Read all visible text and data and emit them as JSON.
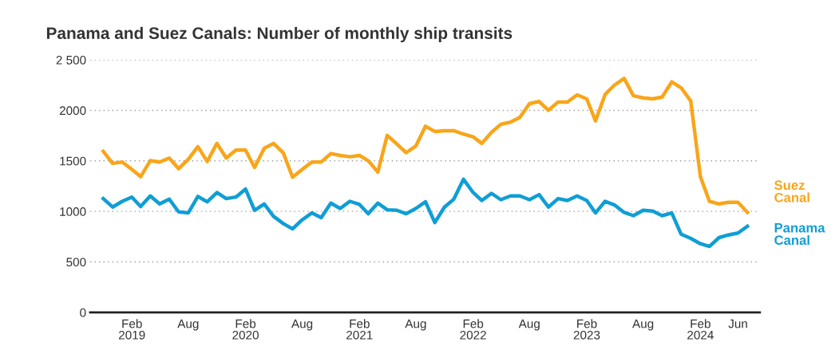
{
  "chart_data": {
    "type": "line",
    "title": "Panama and Suez Canals: Number of monthly ship transits",
    "x": [
      "2018-11",
      "2018-12",
      "2019-01",
      "2019-02",
      "2019-03",
      "2019-04",
      "2019-05",
      "2019-06",
      "2019-07",
      "2019-08",
      "2019-09",
      "2019-10",
      "2019-11",
      "2019-12",
      "2020-01",
      "2020-02",
      "2020-03",
      "2020-04",
      "2020-05",
      "2020-06",
      "2020-07",
      "2020-08",
      "2020-09",
      "2020-10",
      "2020-11",
      "2020-12",
      "2021-01",
      "2021-02",
      "2021-03",
      "2021-04",
      "2021-05",
      "2021-06",
      "2021-07",
      "2021-08",
      "2021-09",
      "2021-10",
      "2021-11",
      "2021-12",
      "2022-01",
      "2022-02",
      "2022-03",
      "2022-04",
      "2022-05",
      "2022-06",
      "2022-07",
      "2022-08",
      "2022-09",
      "2022-10",
      "2022-11",
      "2022-12",
      "2023-01",
      "2023-02",
      "2023-03",
      "2023-04",
      "2023-05",
      "2023-06",
      "2023-07",
      "2023-08",
      "2023-09",
      "2023-10",
      "2023-11",
      "2023-12",
      "2024-01",
      "2024-02",
      "2024-03",
      "2024-04",
      "2024-05",
      "2024-06",
      "2024-07"
    ],
    "series": [
      {
        "name": "Suez Canal",
        "color": "#f9a51a",
        "values": [
          1594,
          1476,
          1489,
          1415,
          1344,
          1502,
          1489,
          1528,
          1423,
          1515,
          1641,
          1494,
          1673,
          1528,
          1607,
          1607,
          1436,
          1625,
          1673,
          1581,
          1339,
          1415,
          1489,
          1489,
          1573,
          1554,
          1541,
          1554,
          1502,
          1389,
          1752,
          1668,
          1581,
          1647,
          1843,
          1791,
          1799,
          1799,
          1765,
          1738,
          1673,
          1783,
          1862,
          1883,
          1930,
          2067,
          2088,
          2000,
          2083,
          2083,
          2153,
          2114,
          1896,
          2158,
          2250,
          2316,
          2145,
          2124,
          2114,
          2132,
          2282,
          2224,
          2093,
          1344,
          1100,
          1074,
          1090,
          1090,
          990
        ]
      },
      {
        "name": "Panama Canal",
        "color": "#0f9ed5",
        "values": [
          1127,
          1043,
          1100,
          1142,
          1048,
          1153,
          1074,
          1121,
          995,
          985,
          1148,
          1095,
          1187,
          1127,
          1142,
          1221,
          1011,
          1074,
          951,
          880,
          827,
          917,
          985,
          938,
          1082,
          1029,
          1100,
          1069,
          977,
          1082,
          1016,
          1011,
          977,
          1029,
          1095,
          890,
          1043,
          1121,
          1318,
          1187,
          1108,
          1179,
          1116,
          1153,
          1153,
          1116,
          1166,
          1043,
          1127,
          1108,
          1153,
          1108,
          985,
          1100,
          1064,
          990,
          958,
          1011,
          1003,
          958,
          985,
          775,
          733,
          680,
          654,
          741,
          767,
          786,
          853
        ]
      }
    ],
    "xlim": [
      "2018-09-20",
      "2024-08-10"
    ],
    "xticks": [
      {
        "value": "2019-02",
        "label": "Feb\n2019"
      },
      {
        "value": "2019-08",
        "label": "Aug"
      },
      {
        "value": "2020-02",
        "label": "Feb\n2020"
      },
      {
        "value": "2020-08",
        "label": "Aug"
      },
      {
        "value": "2021-02",
        "label": "Feb\n2021"
      },
      {
        "value": "2021-08",
        "label": "Aug"
      },
      {
        "value": "2022-02",
        "label": "Feb\n2022"
      },
      {
        "value": "2022-08",
        "label": "Aug"
      },
      {
        "value": "2023-02",
        "label": "Feb\n2023"
      },
      {
        "value": "2023-08",
        "label": "Aug"
      },
      {
        "value": "2024-02",
        "label": "Feb\n2024"
      },
      {
        "value": "2024-06",
        "label": "Jun"
      }
    ],
    "ylim": [
      0,
      2500
    ],
    "yticks": [
      0,
      500,
      1000,
      1500,
      2000,
      {
        "value": 2500,
        "label": "2 500"
      }
    ],
    "grid": "y",
    "legend": false,
    "line_style": "solid",
    "marker": "none"
  }
}
